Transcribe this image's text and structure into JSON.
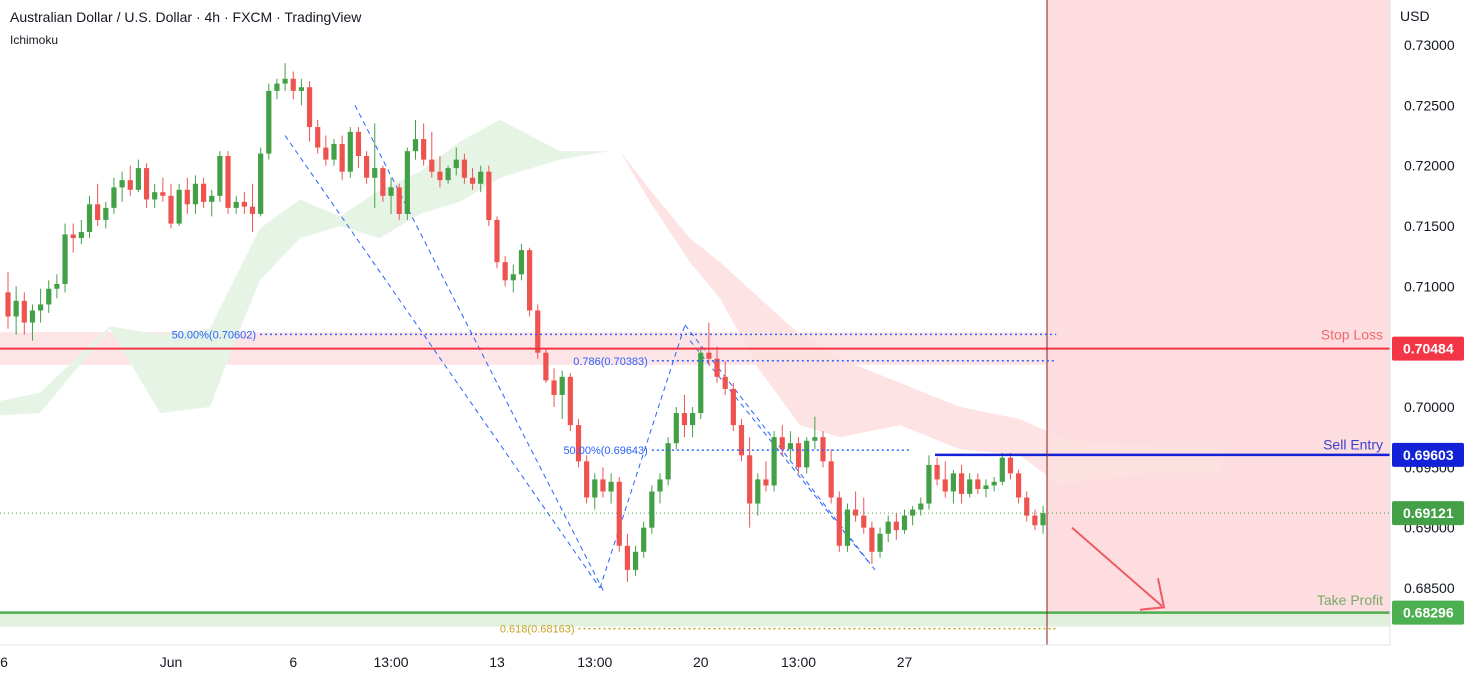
{
  "header": {
    "title": "Australian Dollar / U.S. Dollar · 4h · FXCM · TradingView",
    "indicator": "Ichimoku"
  },
  "colors": {
    "up": "#26a69a",
    "up_body": "#43a047",
    "down": "#ef5350",
    "stop_loss": "#f23645",
    "sell_entry": "#1322d6",
    "take_profit": "#4caf50",
    "take_profit_text": "#7aa96a",
    "sell_entry_text": "#3b3fd1",
    "stop_loss_text": "#ef6a6a",
    "fib_blue": "#2962ff",
    "fib_gold": "#c9a227",
    "cloud_green": "#e6f4e6",
    "cloud_red": "#fde0e0",
    "zone_red": "#fddde0",
    "zone_green": "#dff0da"
  },
  "chart_data": {
    "type": "candlestick",
    "title": "Australian Dollar / U.S. Dollar · 4h · FXCM · TradingView",
    "currency": "USD",
    "ylim": [
      0.6785,
      0.7325
    ],
    "y_ticks": [
      "0.73000",
      "0.72500",
      "0.72000",
      "0.71500",
      "0.71000",
      "0.70000",
      "0.69500",
      "0.69000",
      "0.68500"
    ],
    "y_tick_values": [
      0.73,
      0.725,
      0.72,
      0.715,
      0.71,
      0.7,
      0.695,
      0.69,
      0.685
    ],
    "x_ticks": [
      {
        "label": "6",
        "bar": -1
      },
      {
        "label": "Jun",
        "bar": 20
      },
      {
        "label": "6",
        "bar": 35
      },
      {
        "label": "13:00",
        "bar": 47
      },
      {
        "label": "13",
        "bar": 60
      },
      {
        "label": "13:00",
        "bar": 72
      },
      {
        "label": "20",
        "bar": 85
      },
      {
        "label": "13:00",
        "bar": 97
      },
      {
        "label": "27",
        "bar": 110
      }
    ],
    "candles": [
      [
        0.7095,
        0.7112,
        0.7065,
        0.7075
      ],
      [
        0.7075,
        0.71,
        0.706,
        0.7088
      ],
      [
        0.7088,
        0.7095,
        0.706,
        0.707
      ],
      [
        0.707,
        0.7085,
        0.7055,
        0.708
      ],
      [
        0.708,
        0.7098,
        0.707,
        0.7085
      ],
      [
        0.7085,
        0.7105,
        0.7078,
        0.7098
      ],
      [
        0.7098,
        0.711,
        0.709,
        0.7102
      ],
      [
        0.7102,
        0.7152,
        0.7095,
        0.7143
      ],
      [
        0.7143,
        0.7152,
        0.7128,
        0.714
      ],
      [
        0.714,
        0.7155,
        0.7135,
        0.7145
      ],
      [
        0.7145,
        0.7175,
        0.714,
        0.7168
      ],
      [
        0.7168,
        0.7185,
        0.715,
        0.7155
      ],
      [
        0.7155,
        0.717,
        0.7148,
        0.7165
      ],
      [
        0.7165,
        0.719,
        0.716,
        0.7182
      ],
      [
        0.7182,
        0.7195,
        0.717,
        0.7188
      ],
      [
        0.7188,
        0.72,
        0.7175,
        0.718
      ],
      [
        0.718,
        0.7205,
        0.7178,
        0.7198
      ],
      [
        0.7198,
        0.7202,
        0.7165,
        0.7172
      ],
      [
        0.7172,
        0.7185,
        0.7165,
        0.7178
      ],
      [
        0.7178,
        0.719,
        0.717,
        0.7175
      ],
      [
        0.7175,
        0.7185,
        0.7148,
        0.7152
      ],
      [
        0.7152,
        0.7185,
        0.715,
        0.718
      ],
      [
        0.718,
        0.719,
        0.716,
        0.7168
      ],
      [
        0.7168,
        0.7192,
        0.716,
        0.7185
      ],
      [
        0.7185,
        0.719,
        0.7165,
        0.717
      ],
      [
        0.717,
        0.718,
        0.7158,
        0.7175
      ],
      [
        0.7175,
        0.7212,
        0.717,
        0.7208
      ],
      [
        0.7208,
        0.7212,
        0.716,
        0.7165
      ],
      [
        0.7165,
        0.7175,
        0.716,
        0.717
      ],
      [
        0.717,
        0.7178,
        0.716,
        0.7166
      ],
      [
        0.7166,
        0.7185,
        0.7145,
        0.716
      ],
      [
        0.716,
        0.7215,
        0.7158,
        0.721
      ],
      [
        0.721,
        0.7268,
        0.7205,
        0.7262
      ],
      [
        0.7262,
        0.7272,
        0.7255,
        0.7268
      ],
      [
        0.7268,
        0.7285,
        0.7262,
        0.7272
      ],
      [
        0.7272,
        0.7278,
        0.7255,
        0.7262
      ],
      [
        0.7262,
        0.7272,
        0.725,
        0.7265
      ],
      [
        0.7265,
        0.727,
        0.722,
        0.7232
      ],
      [
        0.7232,
        0.7238,
        0.721,
        0.7215
      ],
      [
        0.7215,
        0.7225,
        0.72,
        0.7205
      ],
      [
        0.7205,
        0.7222,
        0.72,
        0.7218
      ],
      [
        0.7218,
        0.7225,
        0.7188,
        0.7195
      ],
      [
        0.7195,
        0.7232,
        0.719,
        0.7228
      ],
      [
        0.7228,
        0.7232,
        0.7198,
        0.7208
      ],
      [
        0.7208,
        0.7212,
        0.7185,
        0.719
      ],
      [
        0.719,
        0.7235,
        0.7165,
        0.7198
      ],
      [
        0.7198,
        0.72,
        0.717,
        0.7175
      ],
      [
        0.7175,
        0.719,
        0.716,
        0.7182
      ],
      [
        0.7182,
        0.7185,
        0.7155,
        0.716
      ],
      [
        0.716,
        0.7215,
        0.7155,
        0.7212
      ],
      [
        0.7212,
        0.7238,
        0.7205,
        0.7222
      ],
      [
        0.7222,
        0.7235,
        0.72,
        0.7205
      ],
      [
        0.7205,
        0.7228,
        0.719,
        0.7195
      ],
      [
        0.7195,
        0.7208,
        0.7182,
        0.7188
      ],
      [
        0.7188,
        0.72,
        0.7185,
        0.7198
      ],
      [
        0.7198,
        0.7215,
        0.7192,
        0.7205
      ],
      [
        0.7205,
        0.721,
        0.7185,
        0.719
      ],
      [
        0.719,
        0.7198,
        0.718,
        0.7185
      ],
      [
        0.7185,
        0.72,
        0.7178,
        0.7195
      ],
      [
        0.7195,
        0.72,
        0.715,
        0.7155
      ],
      [
        0.7155,
        0.7158,
        0.7115,
        0.712
      ],
      [
        0.712,
        0.7125,
        0.71,
        0.7105
      ],
      [
        0.7105,
        0.7118,
        0.7095,
        0.711
      ],
      [
        0.711,
        0.7135,
        0.7105,
        0.713
      ],
      [
        0.713,
        0.7132,
        0.7075,
        0.708
      ],
      [
        0.708,
        0.7085,
        0.704,
        0.7045
      ],
      [
        0.7045,
        0.7048,
        0.702,
        0.7022
      ],
      [
        0.7022,
        0.7032,
        0.7,
        0.701
      ],
      [
        0.701,
        0.703,
        0.699,
        0.7025
      ],
      [
        0.7025,
        0.7028,
        0.698,
        0.6985
      ],
      [
        0.6985,
        0.699,
        0.695,
        0.6955
      ],
      [
        0.6955,
        0.696,
        0.692,
        0.6925
      ],
      [
        0.6925,
        0.6945,
        0.6915,
        0.694
      ],
      [
        0.694,
        0.695,
        0.6925,
        0.693
      ],
      [
        0.693,
        0.6945,
        0.692,
        0.6938
      ],
      [
        0.6938,
        0.6942,
        0.688,
        0.6885
      ],
      [
        0.6885,
        0.6895,
        0.6855,
        0.6865
      ],
      [
        0.6865,
        0.6885,
        0.686,
        0.688
      ],
      [
        0.688,
        0.6905,
        0.6875,
        0.69
      ],
      [
        0.69,
        0.6935,
        0.6895,
        0.693
      ],
      [
        0.693,
        0.6945,
        0.692,
        0.694
      ],
      [
        0.694,
        0.6975,
        0.6935,
        0.697
      ],
      [
        0.697,
        0.7,
        0.6965,
        0.6995
      ],
      [
        0.6995,
        0.701,
        0.6975,
        0.6985
      ],
      [
        0.6985,
        0.7,
        0.6975,
        0.6995
      ],
      [
        0.6995,
        0.705,
        0.699,
        0.7045
      ],
      [
        0.7045,
        0.707,
        0.7035,
        0.704
      ],
      [
        0.704,
        0.705,
        0.702,
        0.7025
      ],
      [
        0.7025,
        0.7038,
        0.701,
        0.7015
      ],
      [
        0.7015,
        0.702,
        0.698,
        0.6985
      ],
      [
        0.6985,
        0.699,
        0.6955,
        0.696
      ],
      [
        0.696,
        0.6975,
        0.69,
        0.692
      ],
      [
        0.692,
        0.6945,
        0.691,
        0.694
      ],
      [
        0.694,
        0.6955,
        0.693,
        0.6935
      ],
      [
        0.6935,
        0.698,
        0.693,
        0.6975
      ],
      [
        0.6975,
        0.6985,
        0.696,
        0.6965
      ],
      [
        0.6965,
        0.698,
        0.6955,
        0.697
      ],
      [
        0.697,
        0.6975,
        0.6945,
        0.695
      ],
      [
        0.695,
        0.6975,
        0.6945,
        0.6972
      ],
      [
        0.6972,
        0.6992,
        0.6965,
        0.6975
      ],
      [
        0.6975,
        0.698,
        0.695,
        0.6955
      ],
      [
        0.6955,
        0.6965,
        0.692,
        0.6925
      ],
      [
        0.6925,
        0.693,
        0.688,
        0.6885
      ],
      [
        0.6885,
        0.692,
        0.688,
        0.6915
      ],
      [
        0.6915,
        0.693,
        0.6905,
        0.691
      ],
      [
        0.691,
        0.6925,
        0.6895,
        0.69
      ],
      [
        0.69,
        0.6905,
        0.687,
        0.688
      ],
      [
        0.688,
        0.69,
        0.6875,
        0.6895
      ],
      [
        0.6895,
        0.691,
        0.6888,
        0.6905
      ],
      [
        0.6905,
        0.6912,
        0.689,
        0.6898
      ],
      [
        0.6898,
        0.6915,
        0.6895,
        0.691
      ],
      [
        0.691,
        0.6918,
        0.6902,
        0.6915
      ],
      [
        0.6915,
        0.6925,
        0.691,
        0.692
      ],
      [
        0.692,
        0.696,
        0.6915,
        0.6952
      ],
      [
        0.6952,
        0.6958,
        0.6935,
        0.694
      ],
      [
        0.694,
        0.6955,
        0.6925,
        0.693
      ],
      [
        0.693,
        0.6948,
        0.692,
        0.6945
      ],
      [
        0.6945,
        0.6952,
        0.692,
        0.6928
      ],
      [
        0.6928,
        0.6945,
        0.6925,
        0.694
      ],
      [
        0.694,
        0.6945,
        0.6928,
        0.6932
      ],
      [
        0.6932,
        0.694,
        0.6925,
        0.6935
      ],
      [
        0.6935,
        0.6942,
        0.693,
        0.6938
      ],
      [
        0.6938,
        0.6962,
        0.6935,
        0.6958
      ],
      [
        0.6958,
        0.6962,
        0.694,
        0.6945
      ],
      [
        0.6945,
        0.6948,
        0.692,
        0.6925
      ],
      [
        0.6925,
        0.693,
        0.6905,
        0.691
      ],
      [
        0.691,
        0.6915,
        0.6898,
        0.6902
      ],
      [
        0.6902,
        0.6918,
        0.6895,
        0.6912
      ]
    ],
    "levels": [
      {
        "name": "Stop Loss",
        "value": 0.70484,
        "label": "0.70484"
      },
      {
        "name": "Sell Entry",
        "value": 0.69603,
        "label": "0.69603"
      },
      {
        "name": "Take Profit",
        "value": 0.68296,
        "label": "0.68296"
      },
      {
        "name": "current",
        "value": 0.69121,
        "label": "0.69121"
      }
    ],
    "fib_labels": [
      {
        "text": "50.00%(0.70602)",
        "value": 0.70602,
        "from_bar": 0,
        "to_bar": 128
      },
      {
        "text": "0.786(0.70383)",
        "value": 0.70383,
        "from_bar": 79,
        "to_bar": 128
      },
      {
        "text": "50.00%(0.69643)",
        "value": 0.69643,
        "from_bar": 79,
        "to_bar": 110
      },
      {
        "text": "0.618(0.68163)",
        "value": 0.68163,
        "from_bar": 70,
        "to_bar": 128
      }
    ],
    "annotations": {
      "stop_loss": "Stop Loss",
      "sell_entry": "Sell Entry",
      "take_profit": "Take Profit"
    }
  }
}
